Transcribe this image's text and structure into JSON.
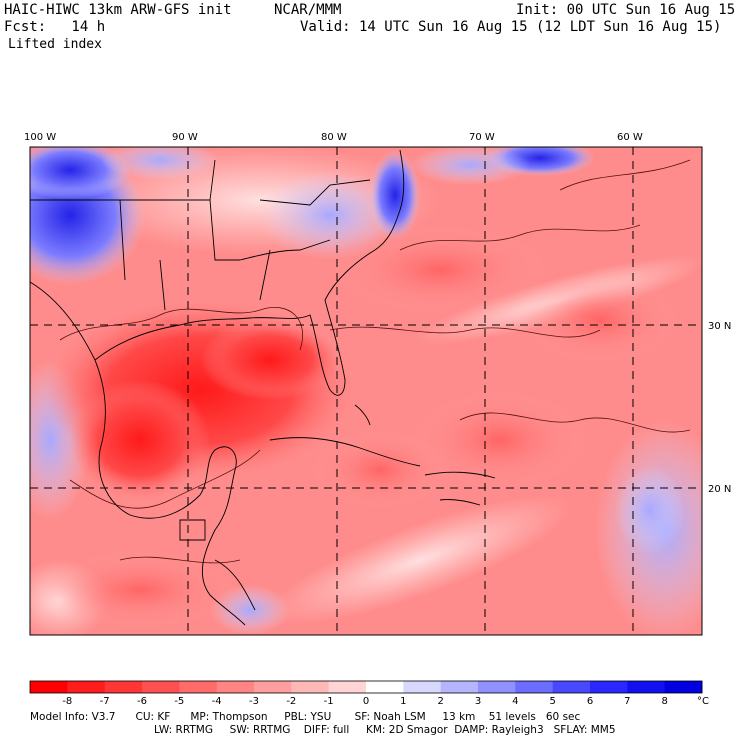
{
  "header": {
    "model_title": "HAIC-HIWC 13km ARW-GFS init",
    "org": "NCAR/MMM",
    "init": "Init: 00 UTC Sun 16 Aug 15",
    "fcst": "Fcst:   14 h",
    "valid": "Valid: 14 UTC Sun 16 Aug 15 (12 LDT Sun 16 Aug 15)",
    "field": "Lifted index"
  },
  "map": {
    "field_name": "Lifted index",
    "lon_labels": [
      "100 W",
      "90 W",
      "80 W",
      "70 W",
      "60 W"
    ],
    "lat_labels": [
      "30 N",
      "20 N"
    ]
  },
  "colorbar": {
    "labels": [
      "-8",
      "-7",
      "-6",
      "-5",
      "-4",
      "-3",
      "-2",
      "-1",
      "0",
      "1",
      "2",
      "3",
      "4",
      "5",
      "6",
      "7",
      "8"
    ],
    "unit": "°C",
    "colors": [
      "#ff0000",
      "#ff1c1c",
      "#ff3636",
      "#ff5050",
      "#ff6a6a",
      "#ff8484",
      "#ff9e9e",
      "#ffb8b8",
      "#ffd4d4",
      "#ffffff",
      "#d8d8ff",
      "#b4b4ff",
      "#9090ff",
      "#6c6cff",
      "#4848ff",
      "#2828ff",
      "#1010f0",
      "#0000e0"
    ]
  },
  "footer": {
    "line1": "Model Info: V3.7      CU: KF      MP: Thompson     PBL: YSU       SF: Noah LSM     13 km    51 levels   60 sec",
    "line2": "LW: RRTMG     SW: RRTMG    DIFF: full     KM: 2D Smagor  DAMP: Rayleigh3   SFLAY: MM5"
  }
}
